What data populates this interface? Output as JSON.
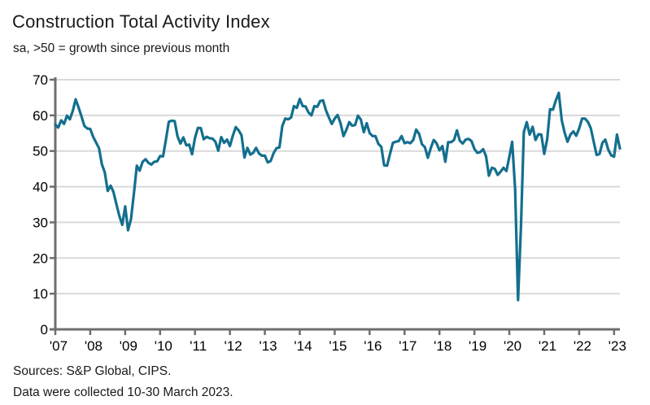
{
  "chart": {
    "title": "Construction Total Activity Index",
    "subtitle": "sa, >50 = growth since previous month"
  },
  "footer": {
    "sources": "Sources: S&P Global, CIPS.",
    "note": "Data were collected 10-30 March 2023."
  },
  "chart_data": {
    "type": "line",
    "title": "Construction Total Activity Index",
    "subtitle": "sa, >50 = growth since previous month",
    "series_name": "Construction Total Activity Index",
    "frequency": "monthly",
    "start": "2007-01",
    "end": "2023-03",
    "ylim": [
      0,
      70
    ],
    "yticks": [
      0,
      10,
      20,
      30,
      40,
      50,
      60,
      70
    ],
    "x_tick_labels": [
      "'07",
      "'08",
      "'09",
      "'10",
      "'11",
      "'12",
      "'13",
      "'14",
      "'15",
      "'16",
      "'17",
      "'18",
      "'19",
      "'20",
      "'21",
      "'22",
      "'23"
    ],
    "x_tick_month_indices": [
      0,
      12,
      24,
      36,
      48,
      60,
      72,
      84,
      96,
      108,
      120,
      132,
      144,
      156,
      168,
      180,
      192
    ],
    "grid": "horizontal",
    "legend": "none",
    "colors": {
      "line": "#136f8e",
      "grid": "#d9d9d9",
      "axis": "#6e6e6e",
      "text": "#000000"
    },
    "values": [
      57.4,
      56.6,
      58.6,
      57.6,
      59.9,
      58.9,
      61.3,
      64.5,
      62.2,
      59.7,
      57.0,
      56.3,
      56.2,
      54.0,
      52.4,
      50.8,
      46.3,
      44.0,
      38.8,
      40.3,
      38.5,
      35.1,
      31.8,
      29.3,
      34.5,
      27.8,
      30.9,
      38.1,
      45.9,
      44.5,
      47.0,
      47.7,
      46.7,
      46.2,
      47.0,
      47.1,
      48.6,
      48.5,
      53.1,
      58.2,
      58.5,
      58.4,
      54.1,
      52.1,
      53.8,
      51.6,
      51.8,
      49.1,
      53.7,
      56.5,
      56.4,
      53.3,
      54.0,
      53.6,
      53.5,
      52.6,
      50.1,
      53.9,
      52.3,
      53.2,
      51.4,
      54.3,
      56.7,
      55.8,
      54.4,
      48.2,
      50.9,
      49.0,
      49.5,
      50.9,
      49.3,
      48.7,
      48.7,
      46.8,
      47.2,
      49.4,
      50.8,
      51.0,
      57.0,
      59.1,
      58.9,
      59.4,
      62.6,
      62.1,
      64.6,
      62.6,
      62.5,
      60.8,
      60.0,
      62.6,
      62.4,
      64.0,
      64.2,
      61.4,
      59.4,
      57.6,
      59.1,
      60.1,
      57.8,
      54.2,
      55.9,
      58.1,
      57.1,
      57.3,
      59.9,
      58.8,
      55.3,
      57.8,
      55.0,
      54.2,
      54.2,
      52.0,
      51.2,
      46.0,
      45.9,
      49.2,
      52.3,
      52.6,
      52.8,
      54.2,
      52.2,
      52.5,
      52.2,
      53.1,
      56.0,
      54.8,
      51.9,
      51.1,
      48.1,
      50.8,
      53.1,
      52.2,
      50.2,
      51.4,
      47.0,
      52.5,
      52.5,
      53.1,
      55.8,
      52.9,
      52.1,
      53.2,
      53.4,
      52.8,
      50.6,
      49.5,
      49.7,
      50.5,
      48.6,
      43.1,
      45.3,
      45.0,
      43.3,
      44.2,
      45.3,
      44.4,
      48.4,
      52.6,
      39.3,
      8.2,
      28.9,
      55.3,
      58.1,
      54.6,
      56.8,
      53.1,
      54.7,
      54.6,
      49.2,
      53.3,
      61.7,
      61.6,
      64.2,
      66.3,
      58.7,
      55.2,
      52.6,
      54.6,
      55.5,
      54.3,
      56.3,
      59.1,
      59.1,
      58.2,
      56.4,
      52.6,
      48.9,
      49.2,
      52.3,
      53.2,
      50.4,
      48.8,
      48.4,
      54.6,
      50.7
    ]
  }
}
